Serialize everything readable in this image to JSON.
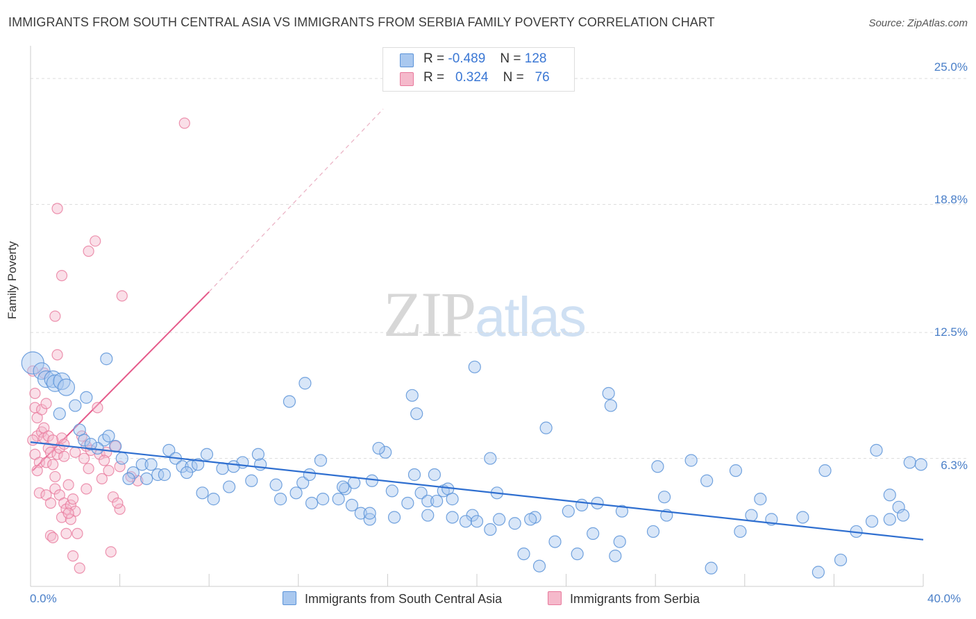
{
  "header": {
    "title": "IMMIGRANTS FROM SOUTH CENTRAL ASIA VS IMMIGRANTS FROM SERBIA FAMILY POVERTY CORRELATION CHART",
    "source": "Source: ZipAtlas.com"
  },
  "watermark": {
    "zip": "ZIP",
    "atlas": "atlas"
  },
  "legend_top": {
    "rows": [
      {
        "r_label": "R =",
        "r_value": "-0.489",
        "n_label": "N =",
        "n_value": "128"
      },
      {
        "r_label": "R =",
        "r_value": "0.324",
        "n_label": "N =",
        "n_value": "76"
      }
    ]
  },
  "legend_bottom": {
    "series1": "Immigrants from South Central Asia",
    "series2": "Immigrants from Serbia"
  },
  "colors": {
    "blue_fill": "#a9c8ef",
    "blue_stroke": "#5b93d8",
    "blue_line": "#2f6fd0",
    "pink_fill": "#f5b9cb",
    "pink_stroke": "#e8799c",
    "pink_line": "#e55a8a",
    "axis_text": "#4a7fc8"
  },
  "chart_data": {
    "type": "scatter",
    "title": "IMMIGRANTS FROM SOUTH CENTRAL ASIA VS IMMIGRANTS FROM SERBIA FAMILY POVERTY CORRELATION CHART",
    "xlabel": "",
    "ylabel": "Family Poverty",
    "xlim": [
      0,
      40
    ],
    "ylim": [
      0,
      26.2
    ],
    "y_ticks": [
      "6.3%",
      "12.5%",
      "18.8%",
      "25.0%"
    ],
    "y_tick_values": [
      6.3,
      12.5,
      18.8,
      25.0
    ],
    "x_ticks": [
      "0.0%",
      "40.0%"
    ],
    "x_tick_values": [
      0,
      40
    ],
    "grid": true,
    "legend": "bottom-center",
    "series": [
      {
        "name": "Immigrants from South Central Asia",
        "r": -0.489,
        "n": 128,
        "trend": {
          "x": [
            0,
            40
          ],
          "y": [
            7.1,
            2.3
          ]
        },
        "points": [
          [
            0.1,
            11.0
          ],
          [
            0.5,
            10.6
          ],
          [
            0.7,
            10.2
          ],
          [
            1.0,
            10.2
          ],
          [
            1.1,
            10.0
          ],
          [
            1.4,
            10.1
          ],
          [
            1.6,
            9.8
          ],
          [
            2.5,
            9.3
          ],
          [
            1.3,
            8.5
          ],
          [
            2.0,
            8.9
          ],
          [
            2.2,
            7.7
          ],
          [
            2.4,
            7.2
          ],
          [
            3.3,
            7.2
          ],
          [
            3.5,
            7.4
          ],
          [
            3.0,
            6.8
          ],
          [
            2.7,
            7.0
          ],
          [
            4.1,
            6.3
          ],
          [
            3.8,
            6.9
          ],
          [
            5.0,
            6.0
          ],
          [
            4.6,
            5.6
          ],
          [
            5.4,
            6.0
          ],
          [
            3.4,
            11.2
          ],
          [
            4.4,
            5.3
          ],
          [
            5.2,
            5.3
          ],
          [
            6.2,
            6.7
          ],
          [
            5.7,
            5.5
          ],
          [
            6.0,
            5.5
          ],
          [
            6.5,
            6.3
          ],
          [
            6.8,
            5.9
          ],
          [
            7.2,
            5.9
          ],
          [
            7.0,
            5.6
          ],
          [
            7.5,
            6.0
          ],
          [
            7.9,
            6.5
          ],
          [
            7.7,
            4.6
          ],
          [
            8.6,
            5.8
          ],
          [
            8.9,
            4.9
          ],
          [
            9.5,
            6.1
          ],
          [
            8.2,
            4.3
          ],
          [
            9.1,
            5.9
          ],
          [
            10.3,
            6.0
          ],
          [
            9.9,
            5.2
          ],
          [
            10.2,
            6.5
          ],
          [
            11.6,
            9.1
          ],
          [
            11.2,
            4.3
          ],
          [
            11.0,
            5.0
          ],
          [
            12.2,
            5.1
          ],
          [
            12.5,
            5.5
          ],
          [
            11.9,
            4.6
          ],
          [
            12.6,
            4.1
          ],
          [
            13.1,
            4.3
          ],
          [
            13.0,
            6.2
          ],
          [
            12.3,
            10.0
          ],
          [
            13.8,
            4.3
          ],
          [
            14.1,
            4.8
          ],
          [
            14.5,
            5.1
          ],
          [
            14.4,
            4.0
          ],
          [
            14.0,
            4.9
          ],
          [
            14.8,
            3.6
          ],
          [
            15.3,
            5.2
          ],
          [
            15.2,
            3.3
          ],
          [
            15.9,
            6.6
          ],
          [
            15.6,
            6.8
          ],
          [
            17.3,
            8.5
          ],
          [
            17.1,
            9.4
          ],
          [
            17.5,
            4.6
          ],
          [
            17.2,
            5.5
          ],
          [
            15.2,
            3.6
          ],
          [
            16.3,
            3.4
          ],
          [
            16.2,
            4.7
          ],
          [
            16.9,
            4.1
          ],
          [
            17.8,
            4.2
          ],
          [
            18.1,
            5.5
          ],
          [
            18.5,
            4.7
          ],
          [
            18.2,
            4.2
          ],
          [
            18.7,
            4.8
          ],
          [
            18.9,
            4.3
          ],
          [
            19.8,
            3.5
          ],
          [
            20.6,
            6.3
          ],
          [
            19.5,
            3.2
          ],
          [
            17.8,
            3.5
          ],
          [
            18.9,
            3.4
          ],
          [
            19.9,
            10.8
          ],
          [
            20.0,
            3.2
          ],
          [
            20.9,
            4.6
          ],
          [
            21.0,
            3.3
          ],
          [
            21.7,
            3.1
          ],
          [
            20.6,
            2.8
          ],
          [
            22.6,
            3.4
          ],
          [
            22.1,
            1.6
          ],
          [
            22.8,
            1.0
          ],
          [
            22.4,
            3.3
          ],
          [
            23.1,
            7.8
          ],
          [
            23.5,
            2.2
          ],
          [
            24.5,
            1.6
          ],
          [
            24.7,
            4.0
          ],
          [
            24.1,
            3.7
          ],
          [
            25.4,
            4.1
          ],
          [
            25.2,
            2.6
          ],
          [
            25.9,
            9.5
          ],
          [
            26.5,
            3.7
          ],
          [
            26.2,
            1.5
          ],
          [
            26.4,
            2.2
          ],
          [
            26.0,
            8.9
          ],
          [
            27.9,
            2.7
          ],
          [
            28.4,
            4.4
          ],
          [
            28.1,
            5.9
          ],
          [
            28.5,
            3.5
          ],
          [
            29.6,
            6.2
          ],
          [
            30.3,
            5.2
          ],
          [
            30.5,
            0.9
          ],
          [
            31.6,
            5.7
          ],
          [
            31.8,
            2.7
          ],
          [
            32.7,
            4.3
          ],
          [
            32.3,
            3.5
          ],
          [
            33.2,
            3.3
          ],
          [
            34.6,
            3.4
          ],
          [
            35.3,
            0.7
          ],
          [
            35.6,
            5.7
          ],
          [
            36.3,
            1.3
          ],
          [
            37.0,
            2.7
          ],
          [
            37.7,
            3.2
          ],
          [
            37.9,
            6.7
          ],
          [
            38.5,
            3.3
          ],
          [
            38.9,
            3.9
          ],
          [
            39.4,
            6.1
          ],
          [
            39.1,
            3.5
          ],
          [
            38.5,
            4.5
          ],
          [
            39.9,
            6.0
          ]
        ]
      },
      {
        "name": "Immigrants from Serbia",
        "r": 0.324,
        "n": 76,
        "trend": {
          "x": [
            0.1,
            8.0
          ],
          "y": [
            5.7,
            14.5
          ]
        },
        "trend_extension": {
          "x": [
            8.0,
            15.8
          ],
          "y": [
            14.5,
            23.5
          ]
        },
        "points": [
          [
            0.1,
            10.6
          ],
          [
            0.2,
            9.5
          ],
          [
            0.2,
            8.8
          ],
          [
            0.3,
            8.3
          ],
          [
            0.3,
            7.4
          ],
          [
            0.1,
            7.2
          ],
          [
            0.2,
            6.5
          ],
          [
            0.4,
            6.1
          ],
          [
            0.3,
            5.7
          ],
          [
            0.5,
            8.7
          ],
          [
            0.6,
            10.5
          ],
          [
            0.7,
            9.0
          ],
          [
            0.5,
            7.6
          ],
          [
            0.6,
            7.3
          ],
          [
            0.8,
            6.8
          ],
          [
            0.9,
            6.6
          ],
          [
            0.7,
            6.1
          ],
          [
            1.0,
            6.0
          ],
          [
            1.1,
            5.4
          ],
          [
            1.2,
            6.5
          ],
          [
            1.3,
            6.8
          ],
          [
            1.4,
            7.3
          ],
          [
            1.5,
            6.4
          ],
          [
            1.1,
            4.8
          ],
          [
            1.3,
            4.5
          ],
          [
            1.5,
            4.1
          ],
          [
            1.7,
            5.0
          ],
          [
            1.6,
            3.8
          ],
          [
            1.8,
            4.0
          ],
          [
            1.9,
            4.3
          ],
          [
            2.0,
            3.7
          ],
          [
            1.4,
            3.4
          ],
          [
            1.8,
            3.3
          ],
          [
            2.1,
            2.6
          ],
          [
            0.9,
            2.5
          ],
          [
            1.0,
            2.4
          ],
          [
            1.6,
            2.6
          ],
          [
            2.3,
            7.4
          ],
          [
            2.5,
            6.9
          ],
          [
            2.4,
            6.3
          ],
          [
            2.6,
            5.8
          ],
          [
            3.0,
            8.8
          ],
          [
            3.2,
            5.3
          ],
          [
            3.1,
            6.5
          ],
          [
            3.4,
            6.6
          ],
          [
            3.8,
            6.9
          ],
          [
            4.0,
            5.9
          ],
          [
            4.5,
            5.4
          ],
          [
            4.8,
            5.2
          ],
          [
            3.7,
            4.4
          ],
          [
            4.0,
            3.8
          ],
          [
            2.6,
            16.5
          ],
          [
            2.9,
            17.0
          ],
          [
            1.2,
            18.6
          ],
          [
            1.4,
            15.3
          ],
          [
            1.1,
            13.3
          ],
          [
            4.1,
            14.3
          ],
          [
            1.2,
            11.4
          ],
          [
            0.6,
            7.8
          ],
          [
            0.8,
            7.4
          ],
          [
            1.0,
            7.2
          ],
          [
            1.5,
            7.0
          ],
          [
            2.0,
            6.6
          ],
          [
            2.7,
            6.7
          ],
          [
            3.3,
            6.2
          ],
          [
            3.5,
            5.7
          ],
          [
            0.4,
            4.6
          ],
          [
            0.7,
            4.5
          ],
          [
            0.9,
            4.1
          ],
          [
            1.9,
            1.5
          ],
          [
            3.6,
            1.7
          ],
          [
            6.9,
            22.8
          ],
          [
            2.2,
            0.9
          ],
          [
            1.7,
            3.6
          ],
          [
            2.5,
            4.8
          ],
          [
            3.9,
            4.1
          ]
        ]
      }
    ]
  }
}
